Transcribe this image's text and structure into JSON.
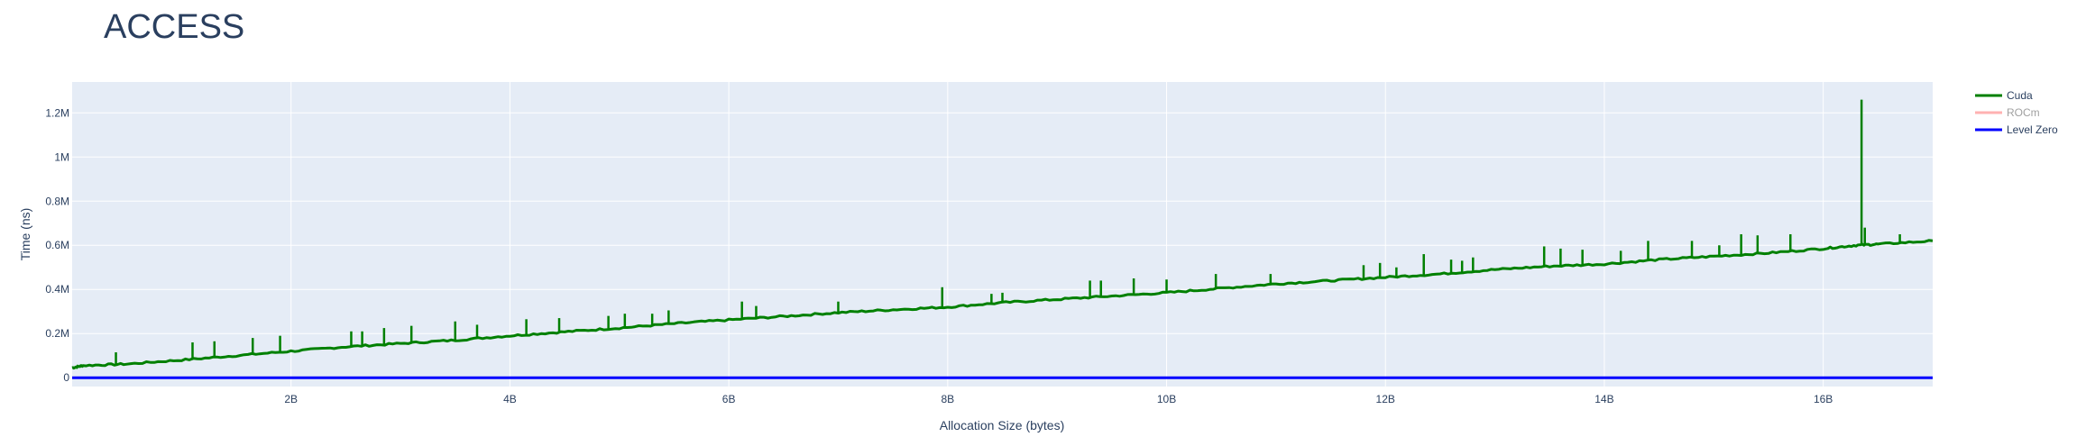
{
  "chart_data": {
    "type": "line",
    "title": "ACCESS",
    "xlabel": "Allocation Size (bytes)",
    "ylabel": "Time (ns)",
    "xlim": [
      0,
      17000000000
    ],
    "ylim": [
      -40000,
      1340000
    ],
    "x_ticks": [
      {
        "value": 2000000000,
        "label": "2B"
      },
      {
        "value": 4000000000,
        "label": "4B"
      },
      {
        "value": 6000000000,
        "label": "6B"
      },
      {
        "value": 8000000000,
        "label": "8B"
      },
      {
        "value": 10000000000,
        "label": "10B"
      },
      {
        "value": 12000000000,
        "label": "12B"
      },
      {
        "value": 14000000000,
        "label": "14B"
      },
      {
        "value": 16000000000,
        "label": "16B"
      }
    ],
    "y_ticks": [
      {
        "value": 0,
        "label": "0"
      },
      {
        "value": 200000,
        "label": "0.2M"
      },
      {
        "value": 400000,
        "label": "0.4M"
      },
      {
        "value": 600000,
        "label": "0.6M"
      },
      {
        "value": 800000,
        "label": "0.8M"
      },
      {
        "value": 1000000,
        "label": "1M"
      },
      {
        "value": 1200000,
        "label": "1.2M"
      }
    ],
    "grid": true,
    "legend_position": "top-right",
    "series": [
      {
        "name": "Cuda",
        "color": "#008000",
        "visible": true,
        "points": [
          [
            0,
            45000
          ],
          [
            100000000,
            55000
          ],
          [
            500000000,
            62000
          ],
          [
            1000000000,
            80000
          ],
          [
            1500000000,
            100000
          ],
          [
            2000000000,
            120000
          ],
          [
            2500000000,
            140000
          ],
          [
            3000000000,
            155000
          ],
          [
            3500000000,
            170000
          ],
          [
            4000000000,
            190000
          ],
          [
            4500000000,
            208000
          ],
          [
            5000000000,
            225000
          ],
          [
            5500000000,
            245000
          ],
          [
            6000000000,
            262000
          ],
          [
            6500000000,
            278000
          ],
          [
            7000000000,
            295000
          ],
          [
            7500000000,
            308000
          ],
          [
            8000000000,
            320000
          ],
          [
            8500000000,
            340000
          ],
          [
            9000000000,
            355000
          ],
          [
            9500000000,
            370000
          ],
          [
            10000000000,
            385000
          ],
          [
            10500000000,
            405000
          ],
          [
            11000000000,
            425000
          ],
          [
            11500000000,
            440000
          ],
          [
            12000000000,
            455000
          ],
          [
            12500000000,
            470000
          ],
          [
            13000000000,
            490000
          ],
          [
            13500000000,
            505000
          ],
          [
            14000000000,
            515000
          ],
          [
            14500000000,
            535000
          ],
          [
            15000000000,
            550000
          ],
          [
            15500000000,
            565000
          ],
          [
            16000000000,
            585000
          ],
          [
            16300000000,
            600000
          ],
          [
            16500000000,
            605000
          ],
          [
            17000000000,
            620000
          ]
        ],
        "spikes": [
          [
            400000000,
            115000
          ],
          [
            1100000000,
            160000
          ],
          [
            1300000000,
            165000
          ],
          [
            1650000000,
            180000
          ],
          [
            1900000000,
            190000
          ],
          [
            2550000000,
            210000
          ],
          [
            2650000000,
            210000
          ],
          [
            2850000000,
            225000
          ],
          [
            3100000000,
            235000
          ],
          [
            3500000000,
            255000
          ],
          [
            3700000000,
            240000
          ],
          [
            4150000000,
            265000
          ],
          [
            4450000000,
            270000
          ],
          [
            4900000000,
            280000
          ],
          [
            5050000000,
            290000
          ],
          [
            5300000000,
            290000
          ],
          [
            5450000000,
            305000
          ],
          [
            6120000000,
            345000
          ],
          [
            6250000000,
            325000
          ],
          [
            7000000000,
            345000
          ],
          [
            7950000000,
            410000
          ],
          [
            8400000000,
            380000
          ],
          [
            8500000000,
            385000
          ],
          [
            9300000000,
            440000
          ],
          [
            9400000000,
            440000
          ],
          [
            9700000000,
            450000
          ],
          [
            10000000000,
            445000
          ],
          [
            10450000000,
            470000
          ],
          [
            10950000000,
            470000
          ],
          [
            11800000000,
            510000
          ],
          [
            11950000000,
            520000
          ],
          [
            12100000000,
            500000
          ],
          [
            12350000000,
            560000
          ],
          [
            12600000000,
            535000
          ],
          [
            12700000000,
            530000
          ],
          [
            12800000000,
            545000
          ],
          [
            13450000000,
            595000
          ],
          [
            13600000000,
            585000
          ],
          [
            13800000000,
            580000
          ],
          [
            14150000000,
            575000
          ],
          [
            14400000000,
            620000
          ],
          [
            14800000000,
            620000
          ],
          [
            15050000000,
            600000
          ],
          [
            15250000000,
            650000
          ],
          [
            15400000000,
            645000
          ],
          [
            15700000000,
            650000
          ],
          [
            16350000000,
            1260000
          ],
          [
            16380000000,
            680000
          ],
          [
            16700000000,
            650000
          ]
        ]
      },
      {
        "name": "ROCm",
        "color": "#ff7f7f",
        "visible": false,
        "points": []
      },
      {
        "name": "Level Zero",
        "color": "#0000ff",
        "visible": true,
        "points": [
          [
            0,
            0
          ],
          [
            17000000000,
            0
          ]
        ]
      }
    ]
  }
}
